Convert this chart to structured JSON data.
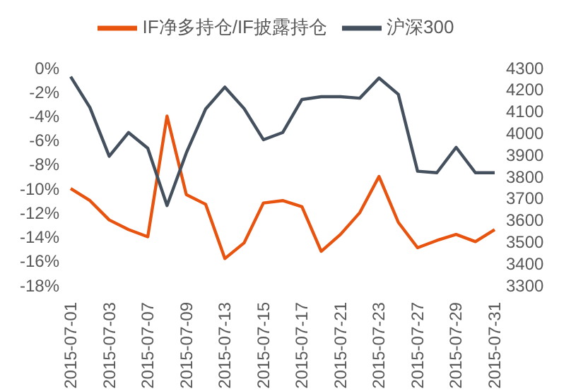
{
  "chart_data": {
    "type": "line",
    "categories": [
      "2015-07-01",
      null,
      "2015-07-03",
      null,
      "2015-07-07",
      null,
      "2015-07-09",
      null,
      "2015-07-13",
      null,
      "2015-07-15",
      null,
      "2015-07-17",
      null,
      "2015-07-21",
      null,
      "2015-07-23",
      null,
      "2015-07-27",
      null,
      "2015-07-29",
      null,
      "2015-07-31"
    ],
    "series": [
      {
        "name": "IF净多持仓/IF披露持仓",
        "color": "#e8540f",
        "values": [
          -10.0,
          -11.0,
          -12.6,
          -13.4,
          -14.0,
          -4.0,
          -10.5,
          -11.3,
          -15.8,
          -14.5,
          -11.2,
          -11.0,
          -11.5,
          -15.2,
          -13.8,
          -12.0,
          -9.0,
          -12.8,
          -14.9,
          -14.3,
          -13.8,
          -14.4,
          -13.4
        ]
      },
      {
        "name": "沪深300",
        "color": "#44505e",
        "axis": "y2",
        "values": [
          4259,
          4117,
          3893,
          4002,
          3930,
          3666,
          3908,
          4110,
          4211,
          4112,
          3969,
          4002,
          4154,
          4167,
          4167,
          4160,
          4253,
          4178,
          3824,
          3817,
          3934,
          3817,
          3817
        ]
      }
    ],
    "ylim": [
      -18,
      0
    ],
    "yticks": [
      {
        "value": -18,
        "label": "-18%"
      },
      {
        "value": -16,
        "label": "-16%"
      },
      {
        "value": -14,
        "label": "-14%"
      },
      {
        "value": -12,
        "label": "-12%"
      },
      {
        "value": -10,
        "label": "-10%"
      },
      {
        "value": -8,
        "label": "-8%"
      },
      {
        "value": -6,
        "label": "-6%"
      },
      {
        "value": -4,
        "label": "-4%"
      },
      {
        "value": -2,
        "label": "-2%"
      },
      {
        "value": 0,
        "label": "0%"
      }
    ],
    "y2lim": [
      3300,
      4300
    ],
    "y2ticks": [
      3300,
      3400,
      3500,
      3600,
      3700,
      3800,
      3900,
      4000,
      4100,
      4200,
      4300
    ],
    "legend": "top",
    "grid": false,
    "marker": "none",
    "line_style": "solid"
  }
}
